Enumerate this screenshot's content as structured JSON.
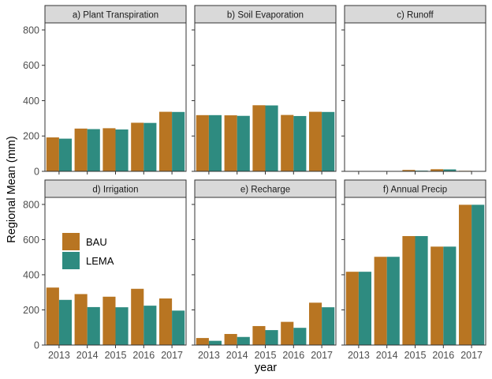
{
  "chart_data": {
    "type": "bar",
    "facet_layout": "2x3",
    "xlabel": "year",
    "ylabel": "Regional Mean (mm)",
    "ylim": [
      0,
      840
    ],
    "yticks": [
      0,
      200,
      400,
      600,
      800
    ],
    "categories": [
      "2013",
      "2014",
      "2015",
      "2016",
      "2017"
    ],
    "legend": {
      "placement": "inside panel d, left",
      "entries": [
        {
          "name": "BAU",
          "color": "#b87522"
        },
        {
          "name": "LEMA",
          "color": "#2e8b80"
        }
      ]
    },
    "colors": {
      "BAU": "#b87522",
      "LEMA": "#2e8b80",
      "strip": "#d9d9d9"
    },
    "grid": false,
    "panels": [
      {
        "title": "a) Plant Transpiration",
        "series": [
          {
            "name": "BAU",
            "values": [
              192,
              242,
              244,
              275,
              337
            ]
          },
          {
            "name": "LEMA",
            "values": [
              185,
              239,
              237,
              274,
              336
            ]
          }
        ]
      },
      {
        "title": "b) Soil Evaporation",
        "series": [
          {
            "name": "BAU",
            "values": [
              318,
              317,
              374,
              319,
              337
            ]
          },
          {
            "name": "LEMA",
            "values": [
              318,
              314,
              373,
              313,
              336
            ]
          }
        ]
      },
      {
        "title": "c) Runoff",
        "series": [
          {
            "name": "BAU",
            "values": [
              2,
              1,
              8,
              12,
              3
            ]
          },
          {
            "name": "LEMA",
            "values": [
              1,
              1,
              4,
              11,
              2
            ]
          }
        ]
      },
      {
        "title": "d) Irrigation",
        "series": [
          {
            "name": "BAU",
            "values": [
              327,
              290,
              275,
              320,
              265
            ]
          },
          {
            "name": "LEMA",
            "values": [
              257,
              216,
              215,
              224,
              196
            ]
          }
        ]
      },
      {
        "title": "e) Recharge",
        "series": [
          {
            "name": "BAU",
            "values": [
              40,
              63,
              108,
              132,
              241
            ]
          },
          {
            "name": "LEMA",
            "values": [
              24,
              46,
              85,
              98,
              215
            ]
          }
        ]
      },
      {
        "title": "f) Annual Precip",
        "series": [
          {
            "name": "BAU",
            "values": [
              417,
              502,
              620,
              560,
              798
            ]
          },
          {
            "name": "LEMA",
            "values": [
              417,
              502,
              620,
              560,
              798
            ]
          }
        ]
      }
    ]
  }
}
